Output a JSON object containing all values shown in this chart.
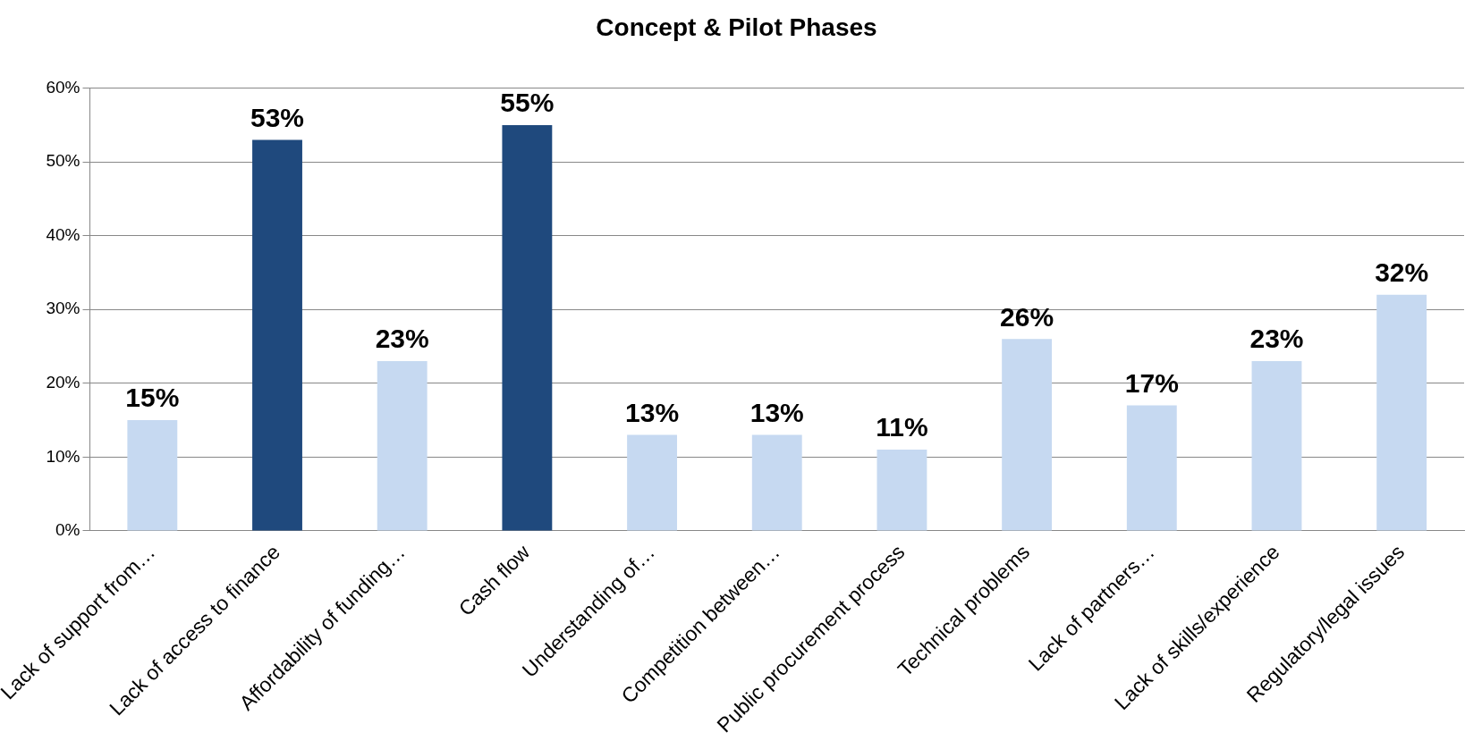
{
  "chart_data": {
    "type": "bar",
    "title": "Concept & Pilot Phases",
    "categories": [
      "Lack of support from…",
      "Lack of access to finance",
      "Affordability of funding…",
      "Cash flow",
      "Understanding of…",
      "Competition between…",
      "Public procurement process",
      "Technical problems",
      "Lack of partners…",
      "Lack of skills/experience",
      "Regulatory/legal issues"
    ],
    "values": [
      15,
      53,
      23,
      55,
      13,
      13,
      11,
      26,
      17,
      23,
      32
    ],
    "colors": [
      "#c6d9f1",
      "#1f497d",
      "#c6d9f1",
      "#1f497d",
      "#c6d9f1",
      "#c6d9f1",
      "#c6d9f1",
      "#c6d9f1",
      "#c6d9f1",
      "#c6d9f1",
      "#c6d9f1"
    ],
    "value_labels": [
      "15%",
      "53%",
      "23%",
      "55%",
      "13%",
      "13%",
      "11%",
      "26%",
      "17%",
      "23%",
      "32%"
    ],
    "ylim": [
      0,
      60
    ],
    "yticks": [
      {
        "value": 0,
        "label": "0%"
      },
      {
        "value": 10,
        "label": "10%"
      },
      {
        "value": 20,
        "label": "20%"
      },
      {
        "value": 30,
        "label": "30%"
      },
      {
        "value": 40,
        "label": "40%"
      },
      {
        "value": 50,
        "label": "50%"
      },
      {
        "value": 60,
        "label": "60%"
      }
    ],
    "grid": "y",
    "legend": false
  }
}
